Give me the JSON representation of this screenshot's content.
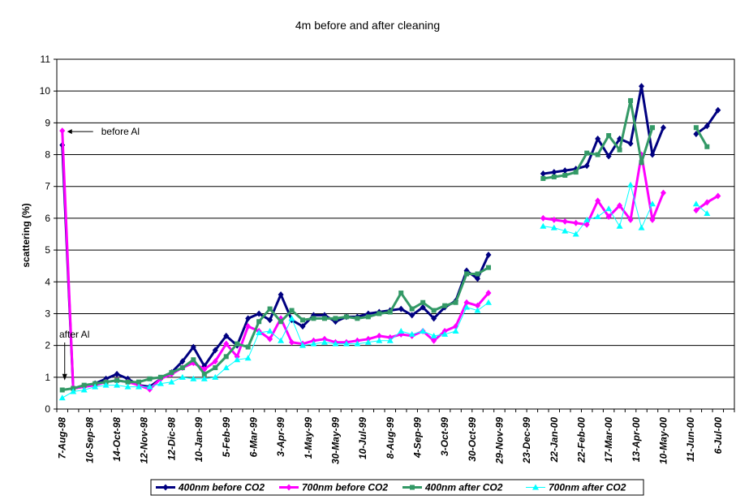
{
  "chart_data": {
    "type": "line",
    "title": "4m before and after cleaning",
    "xlabel": "",
    "ylabel": "scattering (%)",
    "ylim": [
      0,
      11
    ],
    "yticks": [
      0,
      1,
      2,
      3,
      4,
      5,
      6,
      7,
      8,
      9,
      10,
      11
    ],
    "grid": "horizontal",
    "legend_position": "bottom",
    "x_tick_labels": [
      "7-Aug-98",
      "10-Sep-98",
      "14-Oct-98",
      "12-Nov-98",
      "12-Dic-98",
      "10-Jan-99",
      "5-Feb-99",
      "6-Mar-99",
      "3-Apr-99",
      "1-May-99",
      "30-May-99",
      "10-Jul-99",
      "8-Aug-99",
      "4-Sep-99",
      "3-Oct-99",
      "30-Oct-99",
      "29-Nov-99",
      "23-Dec-99",
      "22-Jan-00",
      "22-Feb-00",
      "17-Mar-00",
      "13-Apr-00",
      "10-May-00",
      "11-Jun-00",
      "6-Jul-00"
    ],
    "annotations": [
      {
        "text": "before Al",
        "x": 0,
        "y": 8.75,
        "arrow": "left"
      },
      {
        "text": "after Al",
        "x": 0,
        "y": 0.9,
        "arrow": "down"
      }
    ],
    "series": [
      {
        "name": "400nm before CO2",
        "color": "#000080",
        "marker": "diamond",
        "points": [
          [
            0,
            8.3
          ],
          [
            1,
            0.65
          ],
          [
            2,
            0.7
          ],
          [
            3,
            0.8
          ],
          [
            4,
            0.95
          ],
          [
            5,
            1.1
          ],
          [
            6,
            0.95
          ],
          [
            7,
            0.75
          ],
          [
            8,
            0.7
          ],
          [
            9,
            0.95
          ],
          [
            10,
            1.15
          ],
          [
            11,
            1.5
          ],
          [
            12,
            1.95
          ],
          [
            13,
            1.35
          ],
          [
            14,
            1.85
          ],
          [
            15,
            2.3
          ],
          [
            16,
            2.0
          ],
          [
            17,
            2.85
          ],
          [
            18,
            3.0
          ],
          [
            19,
            2.8
          ],
          [
            20,
            3.6
          ],
          [
            21,
            2.8
          ],
          [
            22,
            2.6
          ],
          [
            23,
            2.95
          ],
          [
            24,
            2.95
          ],
          [
            25,
            2.75
          ],
          [
            26,
            2.9
          ],
          [
            27,
            2.9
          ],
          [
            28,
            3.0
          ],
          [
            29,
            3.05
          ],
          [
            30,
            3.1
          ],
          [
            31,
            3.15
          ],
          [
            32,
            2.95
          ],
          [
            33,
            3.2
          ],
          [
            34,
            2.85
          ],
          [
            35,
            3.2
          ],
          [
            36,
            3.4
          ],
          [
            37,
            4.35
          ],
          [
            38,
            4.1
          ],
          [
            39,
            4.85
          ],
          null,
          null,
          null,
          null,
          [
            44,
            7.4
          ],
          [
            45,
            7.45
          ],
          [
            46,
            7.5
          ],
          [
            47,
            7.55
          ],
          [
            48,
            7.65
          ],
          [
            49,
            8.5
          ],
          [
            50,
            7.95
          ],
          [
            51,
            8.5
          ],
          [
            52,
            8.35
          ],
          [
            53,
            10.15
          ],
          [
            54,
            8.0
          ],
          [
            55,
            8.85
          ],
          null,
          null,
          [
            58,
            8.65
          ],
          [
            59,
            8.9
          ],
          [
            60,
            9.4
          ]
        ]
      },
      {
        "name": "700nm before CO2",
        "color": "#FF00FF",
        "marker": "diamond",
        "points": [
          [
            0,
            8.75
          ],
          [
            1,
            0.65
          ],
          [
            2,
            0.7
          ],
          [
            3,
            0.75
          ],
          [
            4,
            0.85
          ],
          [
            5,
            0.9
          ],
          [
            6,
            0.85
          ],
          [
            7,
            0.75
          ],
          [
            8,
            0.62
          ],
          [
            9,
            0.95
          ],
          [
            10,
            1.1
          ],
          [
            11,
            1.3
          ],
          [
            12,
            1.45
          ],
          [
            13,
            1.25
          ],
          [
            14,
            1.5
          ],
          [
            15,
            2.05
          ],
          [
            16,
            1.65
          ],
          [
            17,
            2.6
          ],
          [
            18,
            2.45
          ],
          [
            19,
            2.2
          ],
          [
            20,
            2.85
          ],
          [
            21,
            2.1
          ],
          [
            22,
            2.05
          ],
          [
            23,
            2.15
          ],
          [
            24,
            2.2
          ],
          [
            25,
            2.1
          ],
          [
            26,
            2.1
          ],
          [
            27,
            2.15
          ],
          [
            28,
            2.2
          ],
          [
            29,
            2.3
          ],
          [
            30,
            2.25
          ],
          [
            31,
            2.35
          ],
          [
            32,
            2.3
          ],
          [
            33,
            2.45
          ],
          [
            34,
            2.15
          ],
          [
            35,
            2.45
          ],
          [
            36,
            2.6
          ],
          [
            37,
            3.35
          ],
          [
            38,
            3.25
          ],
          [
            39,
            3.65
          ],
          null,
          null,
          null,
          null,
          [
            44,
            6.0
          ],
          [
            45,
            5.95
          ],
          [
            46,
            5.9
          ],
          [
            47,
            5.85
          ],
          [
            48,
            5.8
          ],
          [
            49,
            6.55
          ],
          [
            50,
            6.05
          ],
          [
            51,
            6.4
          ],
          [
            52,
            5.95
          ],
          [
            53,
            8.0
          ],
          [
            54,
            5.95
          ],
          [
            55,
            6.8
          ],
          null,
          null,
          [
            58,
            6.25
          ],
          [
            59,
            6.5
          ],
          [
            60,
            6.7
          ]
        ]
      },
      {
        "name": "400nm after CO2",
        "color": "#339966",
        "marker": "square",
        "points": [
          [
            0,
            0.6
          ],
          [
            1,
            0.65
          ],
          [
            2,
            0.75
          ],
          [
            3,
            0.8
          ],
          [
            4,
            0.85
          ],
          [
            5,
            0.9
          ],
          [
            6,
            0.85
          ],
          [
            7,
            0.85
          ],
          [
            8,
            0.95
          ],
          [
            9,
            1.0
          ],
          [
            10,
            1.15
          ],
          [
            11,
            1.3
          ],
          [
            12,
            1.55
          ],
          [
            13,
            1.1
          ],
          [
            14,
            1.3
          ],
          [
            15,
            1.65
          ],
          [
            16,
            2.05
          ],
          [
            17,
            1.95
          ],
          [
            18,
            2.75
          ],
          [
            19,
            3.15
          ],
          [
            20,
            2.75
          ],
          [
            21,
            3.1
          ],
          [
            22,
            2.8
          ],
          [
            23,
            2.85
          ],
          [
            24,
            2.85
          ],
          [
            25,
            2.85
          ],
          [
            26,
            2.9
          ],
          [
            27,
            2.85
          ],
          [
            28,
            2.9
          ],
          [
            29,
            3.0
          ],
          [
            30,
            3.05
          ],
          [
            31,
            3.65
          ],
          [
            32,
            3.15
          ],
          [
            33,
            3.35
          ],
          [
            34,
            3.1
          ],
          [
            35,
            3.25
          ],
          [
            36,
            3.35
          ],
          [
            37,
            4.25
          ],
          [
            38,
            4.25
          ],
          [
            39,
            4.45
          ],
          null,
          null,
          null,
          null,
          [
            44,
            7.25
          ],
          [
            45,
            7.3
          ],
          [
            46,
            7.35
          ],
          [
            47,
            7.45
          ],
          [
            48,
            8.05
          ],
          [
            49,
            8.0
          ],
          [
            50,
            8.6
          ],
          [
            51,
            8.15
          ],
          [
            52,
            9.7
          ],
          [
            53,
            7.75
          ],
          [
            54,
            8.85
          ],
          null,
          null,
          null,
          [
            58,
            8.85
          ],
          [
            59,
            8.25
          ]
        ]
      },
      {
        "name": "700nm after CO2",
        "color": "#00FFFF",
        "marker": "triangle",
        "points": [
          [
            0,
            0.35
          ],
          [
            1,
            0.55
          ],
          [
            2,
            0.6
          ],
          [
            3,
            0.7
          ],
          [
            4,
            0.75
          ],
          [
            5,
            0.75
          ],
          [
            6,
            0.7
          ],
          [
            7,
            0.7
          ],
          [
            8,
            0.7
          ],
          [
            9,
            0.8
          ],
          [
            10,
            0.85
          ],
          [
            11,
            1.0
          ],
          [
            12,
            0.95
          ],
          [
            13,
            0.95
          ],
          [
            14,
            1.0
          ],
          [
            15,
            1.3
          ],
          [
            16,
            1.55
          ],
          [
            17,
            1.6
          ],
          [
            18,
            2.4
          ],
          [
            19,
            2.45
          ],
          [
            20,
            2.15
          ],
          [
            21,
            2.85
          ],
          [
            22,
            2.0
          ],
          [
            23,
            2.05
          ],
          [
            24,
            2.1
          ],
          [
            25,
            2.05
          ],
          [
            26,
            2.05
          ],
          [
            27,
            2.05
          ],
          [
            28,
            2.1
          ],
          [
            29,
            2.15
          ],
          [
            30,
            2.15
          ],
          [
            31,
            2.45
          ],
          [
            32,
            2.35
          ],
          [
            33,
            2.45
          ],
          [
            34,
            2.3
          ],
          [
            35,
            2.35
          ],
          [
            36,
            2.45
          ],
          [
            37,
            3.2
          ],
          [
            38,
            3.1
          ],
          [
            39,
            3.35
          ],
          null,
          null,
          null,
          null,
          [
            44,
            5.75
          ],
          [
            45,
            5.7
          ],
          [
            46,
            5.6
          ],
          [
            47,
            5.5
          ],
          [
            48,
            5.95
          ],
          [
            49,
            6.05
          ],
          [
            50,
            6.3
          ],
          [
            51,
            5.75
          ],
          [
            52,
            7.05
          ],
          [
            53,
            5.7
          ],
          [
            54,
            6.45
          ],
          null,
          null,
          null,
          [
            58,
            6.45
          ],
          [
            59,
            6.15
          ]
        ]
      }
    ]
  }
}
